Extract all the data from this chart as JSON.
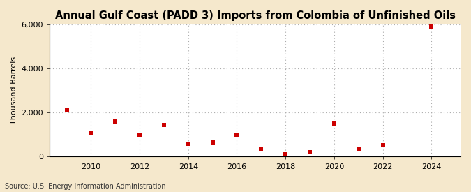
{
  "title": "Annual Gulf Coast (PADD 3) Imports from Colombia of Unfinished Oils",
  "ylabel": "Thousand Barrels",
  "source": "Source: U.S. Energy Information Administration",
  "background_color": "#f5e8cc",
  "plot_background_color": "#ffffff",
  "marker_color": "#cc0000",
  "marker_size": 5,
  "years": [
    2009,
    2010,
    2011,
    2012,
    2013,
    2014,
    2015,
    2016,
    2017,
    2018,
    2019,
    2020,
    2021,
    2022,
    2024
  ],
  "values": [
    2150,
    1050,
    1600,
    1000,
    1450,
    600,
    650,
    1000,
    350,
    150,
    200,
    1500,
    375,
    525,
    5900
  ],
  "xlim": [
    2008.3,
    2025.2
  ],
  "ylim": [
    0,
    6000
  ],
  "yticks": [
    0,
    2000,
    4000,
    6000
  ],
  "xticks": [
    2010,
    2012,
    2014,
    2016,
    2018,
    2020,
    2022,
    2024
  ],
  "grid_color": "#aaaaaa",
  "title_fontsize": 10.5,
  "axis_fontsize": 8,
  "source_fontsize": 7
}
